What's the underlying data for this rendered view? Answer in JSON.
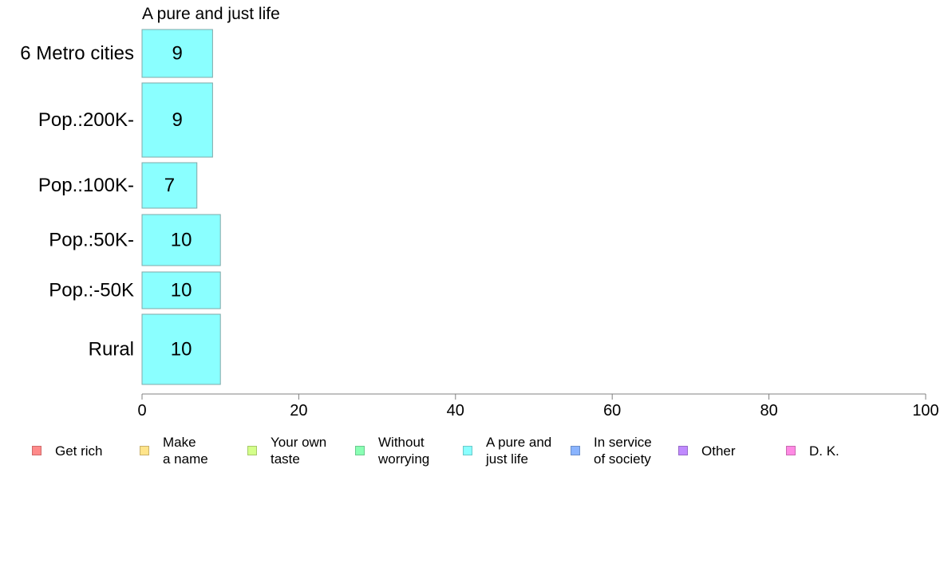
{
  "chart_data": {
    "type": "bar",
    "orientation": "horizontal",
    "title": "A pure and just life",
    "categories": [
      "6 Metro cities",
      "Pop.:200K-",
      "Pop.:100K-",
      "Pop.:50K-",
      "Pop.:-50K",
      "Rural"
    ],
    "values": [
      9,
      9,
      7,
      10,
      10,
      10
    ],
    "value_labels": [
      "9",
      "9",
      "7",
      "10",
      "10",
      "10"
    ],
    "xlim": [
      0,
      100
    ],
    "xticks": [
      0,
      20,
      40,
      60,
      80,
      100
    ],
    "xlabel": "",
    "ylabel": "",
    "grid": false,
    "bar_color": "#8affff",
    "bar_stroke": "#7fa8a8",
    "legend_position": "bottom",
    "legend": [
      {
        "label": "Get rich",
        "color": "#ff8a8a",
        "stroke": "#d06a6a"
      },
      {
        "label": "Make\na name",
        "color": "#ffe48a",
        "stroke": "#c9b06a"
      },
      {
        "label": "Your own\ntaste",
        "color": "#d4ff8a",
        "stroke": "#a6c96a"
      },
      {
        "label": "Without\nworrying",
        "color": "#8affb4",
        "stroke": "#6ac98e"
      },
      {
        "label": "A pure and\njust life",
        "color": "#8affff",
        "stroke": "#6ac9c9"
      },
      {
        "label": "In service\nof society",
        "color": "#8ab4ff",
        "stroke": "#6a8ec9"
      },
      {
        "label": "Other",
        "color": "#c08aff",
        "stroke": "#966ac9"
      },
      {
        "label": "D. K.",
        "color": "#ff8ae4",
        "stroke": "#c96ab0"
      }
    ]
  }
}
